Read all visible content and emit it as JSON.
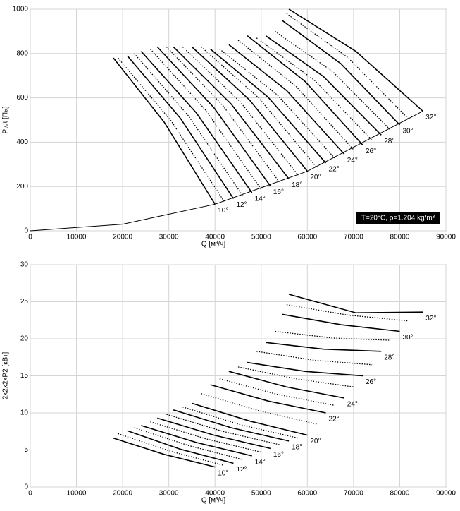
{
  "chart_data": [
    {
      "type": "line",
      "x_label": "Q [м³/ч]",
      "y_label": "Ptot [Па]",
      "annotation": "T=20°C, ρ=1.204 kg/m³",
      "xlim": [
        0,
        90000
      ],
      "ylim": [
        0,
        1000
      ],
      "grid": true,
      "xticks": [
        0,
        10000,
        20000,
        30000,
        40000,
        50000,
        60000,
        70000,
        80000,
        90000
      ],
      "yticks": [
        0,
        200,
        400,
        600,
        800,
        1000
      ],
      "series": [
        {
          "line_style": "thin",
          "color": "#000000",
          "x": [
            0,
            20000,
            40000,
            60000,
            85000
          ],
          "values": [
            0,
            30,
            120,
            269,
            540
          ]
        },
        {
          "name": "10°",
          "line_style": "solid",
          "color": "#000000",
          "x": [
            18000,
            29000,
            40000
          ],
          "values": [
            780,
            490,
            120
          ]
        },
        {
          "line_style": "dotted",
          "color": "#000000",
          "x": [
            19000,
            30500,
            42000
          ],
          "values": [
            780,
            496,
            132
          ]
        },
        {
          "name": "12°",
          "line_style": "solid",
          "color": "#000000",
          "x": [
            21000,
            32500,
            44000
          ],
          "values": [
            790,
            508,
            145
          ]
        },
        {
          "line_style": "dotted",
          "color": "#000000",
          "x": [
            22500,
            34250,
            46000
          ],
          "values": [
            800,
            519,
            158
          ]
        },
        {
          "name": "14°",
          "line_style": "solid",
          "color": "#000000",
          "x": [
            24000,
            36000,
            48000
          ],
          "values": [
            810,
            531,
            172
          ]
        },
        {
          "line_style": "dotted",
          "color": "#000000",
          "x": [
            26000,
            38000,
            50000
          ],
          "values": [
            820,
            544,
            187
          ]
        },
        {
          "name": "16°",
          "line_style": "solid",
          "color": "#000000",
          "x": [
            27500,
            39750,
            52000
          ],
          "values": [
            830,
            556,
            202
          ]
        },
        {
          "line_style": "dotted",
          "color": "#000000",
          "x": [
            29500,
            41750,
            54000
          ],
          "values": [
            830,
            564,
            218
          ]
        },
        {
          "name": "18°",
          "line_style": "solid",
          "color": "#000000",
          "x": [
            31000,
            43500,
            56000
          ],
          "values": [
            830,
            572,
            234
          ]
        },
        {
          "line_style": "dotted",
          "color": "#000000",
          "x": [
            33000,
            45500,
            58000
          ],
          "values": [
            830,
            581,
            251
          ]
        },
        {
          "name": "20°",
          "line_style": "solid",
          "color": "#000000",
          "x": [
            35000,
            47500,
            60000
          ],
          "values": [
            830,
            590,
            269
          ]
        },
        {
          "line_style": "dotted",
          "color": "#000000",
          "x": [
            37000,
            49500,
            62000
          ],
          "values": [
            830,
            599,
            287
          ]
        },
        {
          "name": "22°",
          "line_style": "solid",
          "color": "#000000",
          "x": [
            39000,
            51500,
            64000
          ],
          "values": [
            820,
            603,
            306
          ]
        },
        {
          "line_style": "dotted",
          "color": "#000000",
          "x": [
            41000,
            53500,
            66000
          ],
          "values": [
            820,
            613,
            326
          ]
        },
        {
          "name": "24°",
          "line_style": "solid",
          "color": "#000000",
          "x": [
            43000,
            55500,
            68000
          ],
          "values": [
            840,
            633,
            346
          ]
        },
        {
          "line_style": "dotted",
          "color": "#000000",
          "x": [
            45000,
            57500,
            70000
          ],
          "values": [
            860,
            653,
            366
          ]
        },
        {
          "name": "26°",
          "line_style": "solid",
          "color": "#000000",
          "x": [
            47000,
            59500,
            72000
          ],
          "values": [
            880,
            674,
            387
          ]
        },
        {
          "line_style": "dotted",
          "color": "#000000",
          "x": [
            49000,
            61500,
            74000
          ],
          "values": [
            870,
            680,
            409
          ]
        },
        {
          "name": "28°",
          "line_style": "solid",
          "color": "#000000",
          "x": [
            51000,
            63500,
            76000
          ],
          "values": [
            880,
            696,
            432
          ]
        },
        {
          "line_style": "dotted",
          "color": "#000000",
          "x": [
            53000,
            65500,
            78000
          ],
          "values": [
            900,
            718,
            455
          ]
        },
        {
          "name": "30°",
          "line_style": "solid",
          "color": "#000000",
          "x": [
            54500,
            67250,
            80000
          ],
          "values": [
            950,
            754,
            478
          ]
        },
        {
          "line_style": "dotted",
          "color": "#000000",
          "x": [
            55500,
            68750,
            82000
          ],
          "values": [
            980,
            782,
            503
          ]
        },
        {
          "name": "32°",
          "line_style": "solid",
          "color": "#000000",
          "x": [
            56000,
            70500,
            85000
          ],
          "values": [
            1000,
            810,
            540
          ]
        }
      ]
    },
    {
      "type": "line",
      "x_label": "Q [м³/ч]",
      "y_label": "2x2x2xP2 [кВт]",
      "xlim": [
        0,
        90000
      ],
      "ylim": [
        0,
        30
      ],
      "grid": true,
      "xticks": [
        0,
        10000,
        20000,
        30000,
        40000,
        50000,
        60000,
        70000,
        80000,
        90000
      ],
      "yticks": [
        0,
        5,
        10,
        15,
        20,
        25,
        30
      ],
      "series": [
        {
          "name": "10°",
          "line_style": "solid",
          "color": "#000000",
          "x": [
            18000,
            29000,
            40000
          ],
          "values": [
            6.6,
            4.4,
            2.7
          ]
        },
        {
          "line_style": "dotted",
          "color": "#000000",
          "x": [
            19000,
            30500,
            42000
          ],
          "values": [
            7.2,
            4.8,
            2.9
          ]
        },
        {
          "name": "12°",
          "line_style": "solid",
          "color": "#000000",
          "x": [
            21000,
            32500,
            44000
          ],
          "values": [
            7.6,
            5.1,
            3.2
          ]
        },
        {
          "line_style": "dotted",
          "color": "#000000",
          "x": [
            22500,
            34250,
            46000
          ],
          "values": [
            8.0,
            5.6,
            3.7
          ]
        },
        {
          "name": "14°",
          "line_style": "solid",
          "color": "#000000",
          "x": [
            24000,
            36000,
            48000
          ],
          "values": [
            8.3,
            6.0,
            4.2
          ]
        },
        {
          "line_style": "dotted",
          "color": "#000000",
          "x": [
            26000,
            38000,
            50000
          ],
          "values": [
            8.8,
            6.5,
            4.7
          ]
        },
        {
          "name": "16°",
          "line_style": "solid",
          "color": "#000000",
          "x": [
            27500,
            39750,
            52000
          ],
          "values": [
            9.3,
            7.0,
            5.2
          ]
        },
        {
          "line_style": "dotted",
          "color": "#000000",
          "x": [
            29500,
            41750,
            54000
          ],
          "values": [
            9.8,
            7.5,
            5.7
          ]
        },
        {
          "name": "18°",
          "line_style": "solid",
          "color": "#000000",
          "x": [
            31000,
            43500,
            56000
          ],
          "values": [
            10.4,
            8.0,
            6.2
          ]
        },
        {
          "line_style": "dotted",
          "color": "#000000",
          "x": [
            33000,
            45500,
            58000
          ],
          "values": [
            10.8,
            8.4,
            6.6
          ]
        },
        {
          "name": "20°",
          "line_style": "solid",
          "color": "#000000",
          "x": [
            35000,
            47500,
            60000
          ],
          "values": [
            11.3,
            8.9,
            7.0
          ]
        },
        {
          "line_style": "dotted",
          "color": "#000000",
          "x": [
            37000,
            49500,
            62000
          ],
          "values": [
            12.6,
            10.3,
            8.5
          ]
        },
        {
          "name": "22°",
          "line_style": "solid",
          "color": "#000000",
          "x": [
            39000,
            51500,
            64000
          ],
          "values": [
            13.8,
            11.6,
            10.0
          ]
        },
        {
          "line_style": "dotted",
          "color": "#000000",
          "x": [
            41000,
            53500,
            66000
          ],
          "values": [
            14.6,
            12.5,
            11.0
          ]
        },
        {
          "name": "24°",
          "line_style": "solid",
          "color": "#000000",
          "x": [
            43000,
            55500,
            68000
          ],
          "values": [
            15.6,
            13.5,
            12.0
          ]
        },
        {
          "line_style": "dotted",
          "color": "#000000",
          "x": [
            45000,
            57500,
            70000
          ],
          "values": [
            16.2,
            14.6,
            13.5
          ]
        },
        {
          "name": "26°",
          "line_style": "solid",
          "color": "#000000",
          "x": [
            47000,
            59500,
            72000
          ],
          "values": [
            16.8,
            15.6,
            15.0
          ]
        },
        {
          "line_style": "dotted",
          "color": "#000000",
          "x": [
            49000,
            61500,
            74000
          ],
          "values": [
            18.3,
            17.1,
            16.5
          ]
        },
        {
          "name": "28°",
          "line_style": "solid",
          "color": "#000000",
          "x": [
            51000,
            63500,
            76000
          ],
          "values": [
            19.5,
            18.6,
            18.3
          ]
        },
        {
          "line_style": "dotted",
          "color": "#000000",
          "x": [
            53000,
            65500,
            78000
          ],
          "values": [
            21.0,
            20.1,
            19.8
          ]
        },
        {
          "name": "30°",
          "line_style": "solid",
          "color": "#000000",
          "x": [
            54500,
            67250,
            80000
          ],
          "values": [
            23.3,
            21.9,
            21.0
          ]
        },
        {
          "line_style": "dotted",
          "color": "#000000",
          "x": [
            55500,
            68750,
            82000
          ],
          "values": [
            24.6,
            23.2,
            22.4
          ]
        },
        {
          "name": "32°",
          "line_style": "solid",
          "color": "#000000",
          "x": [
            56000,
            70500,
            85000
          ],
          "values": [
            26.0,
            23.5,
            23.6
          ]
        }
      ]
    }
  ]
}
